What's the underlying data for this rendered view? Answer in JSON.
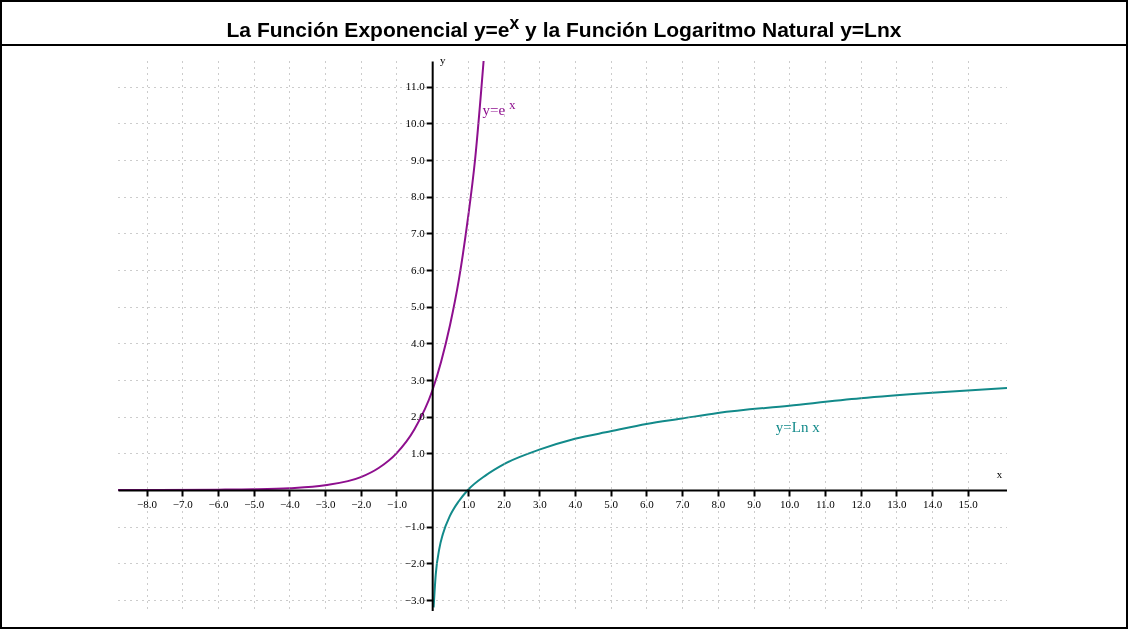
{
  "chart_data": {
    "type": "line",
    "title": "La Función Exponencial  y=e$^{x}$ y la Función Logaritmo Natural y=Lnx",
    "xlabel": "x",
    "ylabel": "y",
    "xlim": [
      -8.8,
      16.1
    ],
    "ylim": [
      -3.3,
      11.7
    ],
    "xticks": [
      {
        "value": -8,
        "label": "−8.0"
      },
      {
        "value": -7,
        "label": "−7.0"
      },
      {
        "value": -6,
        "label": "−6.0"
      },
      {
        "value": -5,
        "label": "−5.0"
      },
      {
        "value": -4,
        "label": "−4.0"
      },
      {
        "value": -3,
        "label": "−3.0"
      },
      {
        "value": -2,
        "label": "−2.0"
      },
      {
        "value": -1,
        "label": "−1.0"
      },
      {
        "value": 1,
        "label": "1.0"
      },
      {
        "value": 2,
        "label": "2.0"
      },
      {
        "value": 3,
        "label": "3.0"
      },
      {
        "value": 4,
        "label": "4.0"
      },
      {
        "value": 5,
        "label": "5.0"
      },
      {
        "value": 6,
        "label": "6.0"
      },
      {
        "value": 7,
        "label": "7.0"
      },
      {
        "value": 8,
        "label": "8.0"
      },
      {
        "value": 9,
        "label": "9.0"
      },
      {
        "value": 10,
        "label": "10.0"
      },
      {
        "value": 11,
        "label": "11.0"
      },
      {
        "value": 12,
        "label": "12.0"
      },
      {
        "value": 13,
        "label": "13.0"
      },
      {
        "value": 14,
        "label": "14.0"
      },
      {
        "value": 15,
        "label": "15.0"
      }
    ],
    "yticks": [
      {
        "value": -3,
        "label": "−3.0"
      },
      {
        "value": -2,
        "label": "−2.0"
      },
      {
        "value": -1,
        "label": "−1.0"
      },
      {
        "value": 1,
        "label": "1.0"
      },
      {
        "value": 2,
        "label": "2.0"
      },
      {
        "value": 3,
        "label": "3.0"
      },
      {
        "value": 4,
        "label": "4.0"
      },
      {
        "value": 5,
        "label": "5.0"
      },
      {
        "value": 6,
        "label": "6.0"
      },
      {
        "value": 7,
        "label": "7.0"
      },
      {
        "value": 8,
        "label": "8.0"
      },
      {
        "value": 9,
        "label": "9.0"
      },
      {
        "value": 10,
        "label": "10.0"
      },
      {
        "value": 11,
        "label": "11.0"
      }
    ],
    "grid": true,
    "series": [
      {
        "name": "y=e$^{x}$",
        "color": "#8e0f8e",
        "x": [
          -8.8,
          -6,
          -5,
          -4,
          -3,
          -2,
          -1.5,
          -1,
          -0.5,
          0,
          0.25,
          0.5,
          0.75,
          1,
          1.2,
          1.44
        ],
        "values": [
          0,
          0.01,
          0.02,
          0.05,
          0.13,
          0.35,
          0.6,
          1,
          1.65,
          2.7,
          3.5,
          4.5,
          5.75,
          7.4,
          9,
          11.7
        ]
      },
      {
        "name": "y=Ln x",
        "color": "#128a8a",
        "x": [
          0.04,
          0.1,
          0.2,
          0.3,
          0.5,
          0.75,
          1,
          1.5,
          2,
          3,
          4,
          5,
          6,
          7,
          8,
          10,
          12,
          14,
          16.1
        ],
        "values": [
          -3.2,
          -2.3,
          -1.6,
          -1.2,
          -0.7,
          -0.3,
          0,
          0.4,
          0.7,
          1.1,
          1.4,
          1.6,
          1.8,
          1.95,
          2.1,
          2.3,
          2.5,
          2.65,
          2.78
        ]
      }
    ]
  }
}
